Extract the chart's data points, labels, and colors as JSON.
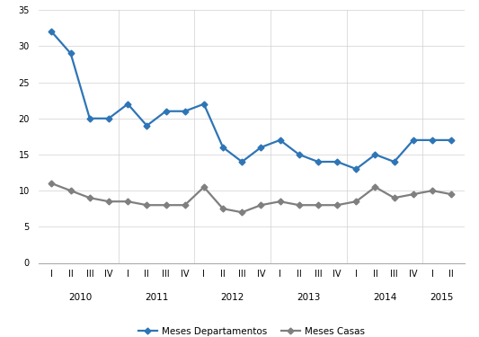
{
  "departamentos": [
    32,
    29,
    20,
    20,
    22,
    19,
    21,
    21,
    22,
    16,
    14,
    16,
    17,
    15,
    14,
    14,
    13,
    15,
    14,
    17,
    17,
    17
  ],
  "casas": [
    11,
    10,
    9,
    8.5,
    8.5,
    8,
    8,
    8,
    10.5,
    7.5,
    7,
    8,
    8.5,
    8,
    8,
    8,
    8.5,
    10.5,
    9,
    9.5,
    10,
    9.5
  ],
  "quarter_labels": [
    "I",
    "II",
    "III",
    "IV",
    "I",
    "II",
    "III",
    "IV",
    "I",
    "II",
    "III",
    "IV",
    "I",
    "II",
    "III",
    "IV",
    "I",
    "II",
    "III",
    "IV",
    "I",
    "II"
  ],
  "year_labels": [
    "2010",
    "2011",
    "2012",
    "2013",
    "2014",
    "2015"
  ],
  "year_x": [
    2.5,
    6.5,
    10.5,
    14.5,
    18.5,
    21.5
  ],
  "year_sep": [
    4.5,
    8.5,
    12.5,
    16.5,
    20.5
  ],
  "xlim": [
    0.3,
    22.7
  ],
  "ylim": [
    0,
    35
  ],
  "yticks": [
    0,
    5,
    10,
    15,
    20,
    25,
    30,
    35
  ],
  "color_dep": "#2e75b6",
  "color_cas": "#7f7f7f",
  "legend_dep": "Meses Departamentos",
  "legend_cas": "Meses Casas",
  "marker": "D",
  "linewidth": 1.6,
  "markersize": 3.5,
  "tick_fontsize": 7,
  "year_fontsize": 7.5,
  "legend_fontsize": 7.5
}
